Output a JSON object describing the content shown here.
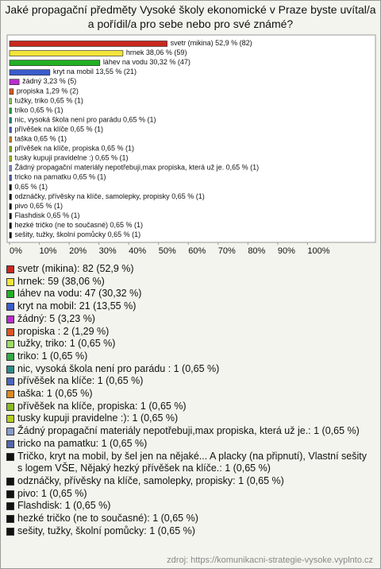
{
  "chart_data": {
    "type": "bar",
    "orientation": "horizontal",
    "title": "Jaké propagační předměty Vysoké školy ekonomické v Praze byste uvítal/a a pořídil/a pro sebe nebo pro své známé?",
    "categories": [
      "svetr (mikina)",
      "hrnek",
      "láhev na vodu",
      "kryt na mobil",
      "žádný",
      "propiska ",
      "tužky, triko",
      "triko",
      "nic, vysoká škola není pro parádu ",
      "přívěšek na klíče",
      "taška",
      "přívěšek na klíče, propiska",
      "tusky kupuji pravidelne :)",
      "Žádný propagační materiály nepotřebuji,max propiska, která už je.",
      "tricko na pamatku",
      null,
      "odznáčky, přívěsky na klíče, samolepky, propisky",
      "pivo",
      "Flashdisk",
      "hezké tričko (ne to současné)",
      "sešity, tužky, školní pomůcky"
    ],
    "values": [
      52.9,
      38.06,
      30.32,
      13.55,
      3.23,
      1.29,
      0.65,
      0.65,
      0.65,
      0.65,
      0.65,
      0.65,
      0.65,
      0.65,
      0.65,
      0.65,
      0.65,
      0.65,
      0.65,
      0.65,
      0.65
    ],
    "value_labels": [
      "52,9 % (82)",
      "38,06 % (59)",
      "30,32 % (47)",
      "13,55 % (21)",
      "3,23 % (5)",
      "1,29 % (2)",
      "0,65 % (1)",
      "0,65 % (1)",
      "0,65 % (1)",
      "0,65 % (1)",
      "0,65 % (1)",
      "0,65 % (1)",
      "0,65 % (1)",
      "0,65 % (1)",
      "0,65 % (1)",
      "0,65 % (1)",
      "0,65 % (1)",
      "0,65 % (1)",
      "0,65 % (1)",
      "0,65 % (1)",
      "0,65 % (1)"
    ],
    "colors": [
      "#c8281e",
      "#f2e43a",
      "#22b022",
      "#3a5ccc",
      "#b530c8",
      "#dd5522",
      "#99dd66",
      "#33aa44",
      "#2f8a8a",
      "#4a66bb",
      "#dd8a22",
      "#88bb22",
      "#b5cc22",
      "#8899cc",
      "#5566aa",
      "#111111",
      "#111111",
      "#111111",
      "#111111",
      "#111111",
      "#111111"
    ],
    "legend_labels": [
      "svetr (mikina): 82 (52,9 %)",
      "hrnek: 59 (38,06 %)",
      "láhev na vodu: 47 (30,32 %)",
      "kryt na mobil: 21 (13,55 %)",
      "žádný: 5 (3,23 %)",
      "propiska : 2 (1,29 %)",
      "tužky, triko: 1 (0,65 %)",
      "triko: 1 (0,65 %)",
      "nic, vysoká škola není pro parádu : 1 (0,65 %)",
      "přívěšek na klíče: 1 (0,65 %)",
      "taška: 1 (0,65 %)",
      "přívěšek na klíče, propiska: 1 (0,65 %)",
      "tusky kupuji pravidelne :): 1 (0,65 %)",
      "Žádný propagační materiály nepotřebuji,max propiska, která už je.: 1 (0,65 %)",
      "tricko na pamatku: 1 (0,65 %)",
      "Tričko, kryt na mobil, by šel jen na nějaké... A placky (na připnutí), Vlastní sešity s logem VŠE, Nějaký hezký přívěšek na klíče.: 1 (0,65 %)",
      "odznáčky, přívěsky na klíče, samolepky, propisky: 1 (0,65 %)",
      "pivo: 1 (0,65 %)",
      "Flashdisk: 1 (0,65 %)",
      "hezké tričko (ne to současné): 1 (0,65 %)",
      "sešity, tužky, školní pomůcky: 1 (0,65 %)"
    ],
    "xlim": [
      0,
      122
    ],
    "xticks": [
      {
        "value": 0,
        "label": "0%"
      },
      {
        "value": 10,
        "label": "10%"
      },
      {
        "value": 20,
        "label": "20%"
      },
      {
        "value": 30,
        "label": "30%"
      },
      {
        "value": 40,
        "label": "40%"
      },
      {
        "value": 50,
        "label": "50%"
      },
      {
        "value": 60,
        "label": "60%"
      },
      {
        "value": 70,
        "label": "70%"
      },
      {
        "value": 80,
        "label": "80%"
      },
      {
        "value": 90,
        "label": "90%"
      },
      {
        "value": 100,
        "label": "100%"
      }
    ],
    "source": "zdroj: https://komunikacni-strategie-vysoke.vyplnto.cz"
  }
}
